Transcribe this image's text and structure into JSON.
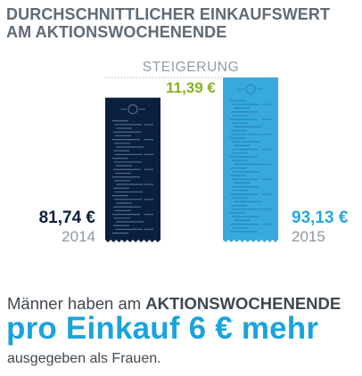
{
  "title_line1": "DURCHSCHNITTLICHER EINKAUFSWERT",
  "title_line2": "AM AKTIONSWOCHENENDE",
  "chart_data": {
    "type": "bar",
    "categories": [
      "2014",
      "2015"
    ],
    "values": [
      81.74,
      93.13
    ],
    "value_labels": [
      "81,74 €",
      "93,13 €"
    ],
    "difference_label": "STEIGERUNG",
    "difference_value": "11,39 €",
    "colors": {
      "bar_2014": "#0b1f3f",
      "bar_2015": "#37a9df",
      "difference": "#86b221",
      "value_2014": "#0b1f3f",
      "value_2015": "#2aa6de",
      "year": "#8e979e"
    }
  },
  "bottom": {
    "line1_start": "Männer haben am",
    "line1_caps": "AKTIONSWOCHENENDE",
    "line2": "pro Einkauf 6 € mehr",
    "line3": "ausgegeben als Frauen."
  }
}
